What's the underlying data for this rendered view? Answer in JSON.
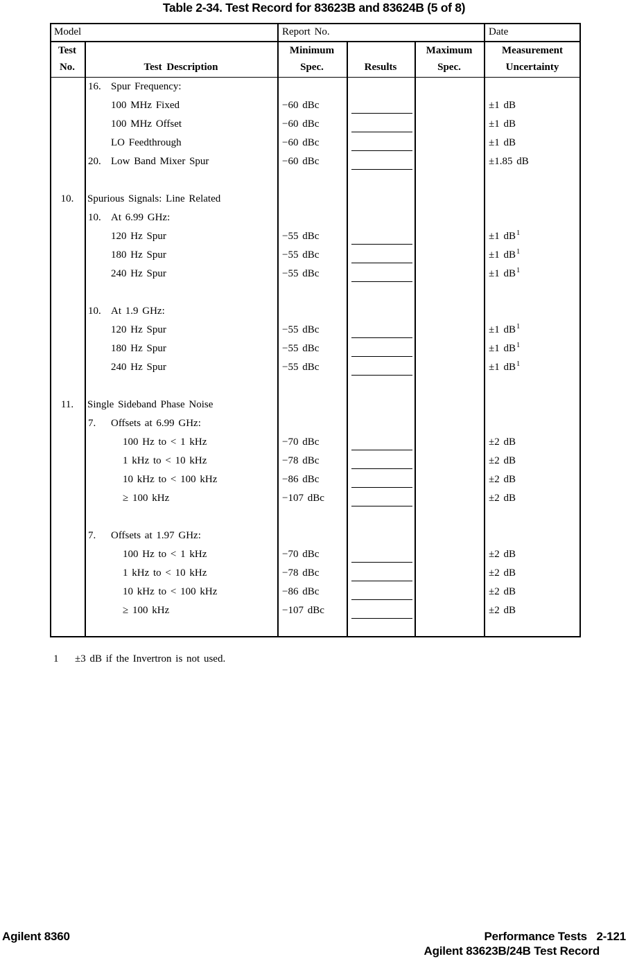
{
  "title": "Table 2-34. Test Record for 83623B and 83624B (5 of 8)",
  "table": {
    "info": {
      "model": "Model",
      "report": "Report No.",
      "date": "Date"
    },
    "header": {
      "test_no_line1": "Test",
      "test_no_line2": "No.",
      "description": "Test Description",
      "minimum_line1": "Minimum",
      "minimum_line2": "Spec.",
      "results": "Results",
      "maximum_line1": "Maximum",
      "maximum_line2": "Spec.",
      "uncertainty_line1": "Measurement",
      "uncertainty_line2": "Uncertainty"
    },
    "rows": [
      {
        "num": "16.",
        "text": "Spur Frequency:",
        "indent": "num"
      },
      {
        "text": "100 MHz Fixed",
        "indent": "sub",
        "min": "−60 dBc",
        "line": true,
        "unc": "±1 dB"
      },
      {
        "text": "100 MHz Offset",
        "indent": "sub",
        "min": "−60 dBc",
        "line": true,
        "unc": "±1 dB"
      },
      {
        "text": "LO Feedthrough",
        "indent": "sub",
        "min": "−60 dBc",
        "line": true,
        "unc": "±1 dB"
      },
      {
        "num": "20.",
        "text": "Low Band Mixer Spur",
        "indent": "num",
        "min": "−60 dBc",
        "line": true,
        "unc": "±1.85 dB"
      },
      {
        "blank": true
      },
      {
        "no": "10.",
        "text": "Spurious Signals: Line Related",
        "indent": "section"
      },
      {
        "num": "10.",
        "text": "At 6.99 GHz:",
        "indent": "num"
      },
      {
        "text": "120 Hz Spur",
        "indent": "sub",
        "min": "−55 dBc",
        "line": true,
        "unc": "±1 dB",
        "sup": "1"
      },
      {
        "text": "180 Hz Spur",
        "indent": "sub",
        "min": "−55 dBc",
        "line": true,
        "unc": "±1 dB",
        "sup": "1"
      },
      {
        "text": "240 Hz Spur",
        "indent": "sub",
        "min": "−55 dBc",
        "line": true,
        "unc": "±1 dB",
        "sup": "1"
      },
      {
        "blank": true
      },
      {
        "num": "10.",
        "text": "At 1.9 GHz:",
        "indent": "num"
      },
      {
        "text": "120 Hz Spur",
        "indent": "sub",
        "min": "−55 dBc",
        "line": true,
        "unc": "±1 dB",
        "sup": "1"
      },
      {
        "text": "180 Hz Spur",
        "indent": "sub",
        "min": "−55 dBc",
        "line": true,
        "unc": "±1 dB",
        "sup": "1"
      },
      {
        "text": "240 Hz Spur",
        "indent": "sub",
        "min": "−55 dBc",
        "line": true,
        "unc": "±1 dB",
        "sup": "1"
      },
      {
        "blank": true
      },
      {
        "no": "11.",
        "text": "Single Sideband Phase Noise",
        "indent": "section"
      },
      {
        "num": "7.",
        "text": "Offsets at 6.99 GHz:",
        "indent": "num"
      },
      {
        "text": "100 Hz to < 1 kHz",
        "indent": "sub2",
        "min": "−70 dBc",
        "line": true,
        "unc": "±2 dB"
      },
      {
        "text": "1 kHz to < 10 kHz",
        "indent": "sub2",
        "min": "−78 dBc",
        "line": true,
        "unc": "±2 dB"
      },
      {
        "text": "10 kHz to < 100 kHz",
        "indent": "sub2",
        "min": "−86 dBc",
        "line": true,
        "unc": "±2 dB"
      },
      {
        "text": "≥ 100 kHz",
        "indent": "sub2",
        "min": "−107 dBc",
        "line": true,
        "unc": "±2 dB"
      },
      {
        "blank": true
      },
      {
        "num": "7.",
        "text": "Offsets at 1.97 GHz:",
        "indent": "num"
      },
      {
        "text": "100 Hz to < 1 kHz",
        "indent": "sub2",
        "min": "−70 dBc",
        "line": true,
        "unc": "±2 dB"
      },
      {
        "text": "1 kHz to < 10 kHz",
        "indent": "sub2",
        "min": "−78 dBc",
        "line": true,
        "unc": "±2 dB"
      },
      {
        "text": "10 kHz to < 100 kHz",
        "indent": "sub2",
        "min": "−86 dBc",
        "line": true,
        "unc": "±2 dB"
      },
      {
        "text": "≥ 100 kHz",
        "indent": "sub2",
        "min": "−107 dBc",
        "line": true,
        "unc": "±2 dB"
      }
    ]
  },
  "footnote": {
    "marker": "1",
    "text": "±3 dB if the Invertron is not used."
  },
  "footer": {
    "left": "Agilent 8360",
    "right_line1": "Performance Tests   2-121",
    "right_line2": "Agilent 83623B/24B Test Record"
  }
}
